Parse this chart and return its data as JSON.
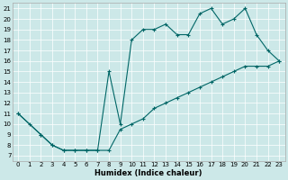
{
  "xlabel": "Humidex (Indice chaleur)",
  "bg_color": "#cce8e8",
  "line_color": "#006666",
  "xlim": [
    -0.5,
    23.5
  ],
  "ylim": [
    6.5,
    21.5
  ],
  "xticks": [
    0,
    1,
    2,
    3,
    4,
    5,
    6,
    7,
    8,
    9,
    10,
    11,
    12,
    13,
    14,
    15,
    16,
    17,
    18,
    19,
    20,
    21,
    22,
    23
  ],
  "yticks": [
    7,
    8,
    9,
    10,
    11,
    12,
    13,
    14,
    15,
    16,
    17,
    18,
    19,
    20,
    21
  ],
  "upper_line": {
    "x": [
      0,
      1,
      2,
      3,
      4,
      5,
      6,
      7,
      8,
      9,
      10,
      11,
      12,
      13,
      14,
      15,
      16,
      17,
      18,
      19,
      20,
      21,
      22,
      23
    ],
    "y": [
      11,
      10,
      9,
      8,
      7.5,
      7.5,
      7.5,
      7.5,
      15,
      10,
      18,
      19,
      19,
      19.5,
      18.5,
      18.5,
      20.5,
      21,
      19.5,
      20,
      21,
      18.5,
      17,
      16
    ]
  },
  "lower_line": {
    "x": [
      0,
      2,
      3,
      4,
      5,
      6,
      7,
      8,
      9,
      10,
      11,
      12,
      13,
      14,
      15,
      16,
      17,
      18,
      19,
      20,
      21,
      22,
      23
    ],
    "y": [
      11,
      9,
      8,
      7.5,
      7.5,
      7.5,
      7.5,
      7.5,
      9.5,
      10,
      10.5,
      11.5,
      12,
      12.5,
      13,
      13.5,
      14,
      14.5,
      15,
      15.5,
      15.5,
      15.5,
      16
    ]
  }
}
